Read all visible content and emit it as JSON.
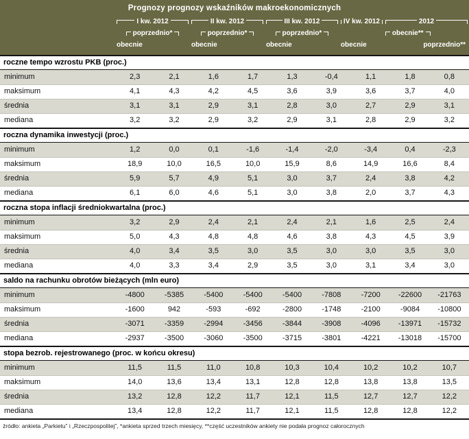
{
  "title": "Prognozy prognozy wskaźników makroekonomicznych",
  "colors": {
    "header_bg": "#686844",
    "row_alt": "#d9d9d0"
  },
  "header": {
    "groups": [
      {
        "label": "I kw. 2012",
        "top": "poprzednio*",
        "bottom": "obecnie"
      },
      {
        "label": "II kw. 2012",
        "top": "poprzednio*",
        "bottom": "obecnie"
      },
      {
        "label": "III kw. 2012",
        "top": "poprzednio*",
        "bottom": "obecnie"
      },
      {
        "label": "IV kw. 2012",
        "top": "",
        "bottom": "obecnie"
      },
      {
        "label": "2012",
        "top": "obecnie**",
        "bottom": "poprzednio**"
      }
    ]
  },
  "chart_data": {
    "type": "table",
    "title": "Prognozy prognozy wskaźników makroekonomicznych",
    "columns": [
      "I kw. 2012 obecnie",
      "I kw. 2012 poprzednio*",
      "II kw. 2012 obecnie",
      "II kw. 2012 poprzednio*",
      "III kw. 2012 obecnie",
      "III kw. 2012 poprzednio*",
      "IV kw. 2012 obecnie",
      "2012 obecnie**",
      "2012 poprzednio**"
    ],
    "sections": [
      {
        "title": "roczne tempo wzrostu PKB (proc.)",
        "rows": [
          {
            "label": "minimum",
            "values": [
              "2,3",
              "2,1",
              "1,6",
              "1,7",
              "1,3",
              "-0,4",
              "1,1",
              "1,8",
              "0,8"
            ]
          },
          {
            "label": "maksimum",
            "values": [
              "4,1",
              "4,3",
              "4,2",
              "4,5",
              "3,6",
              "3,9",
              "3,6",
              "3,7",
              "4,0"
            ]
          },
          {
            "label": "średnia",
            "values": [
              "3,1",
              "3,1",
              "2,9",
              "3,1",
              "2,8",
              "3,0",
              "2,7",
              "2,9",
              "3,1"
            ]
          },
          {
            "label": "mediana",
            "values": [
              "3,2",
              "3,2",
              "2,9",
              "3,2",
              "2,9",
              "3,1",
              "2,8",
              "2,9",
              "3,2"
            ]
          }
        ]
      },
      {
        "title": "roczna dynamika inwestycji (proc.)",
        "rows": [
          {
            "label": "minimum",
            "values": [
              "1,2",
              "0,0",
              "0,1",
              "-1,6",
              "-1,4",
              "-2,0",
              "-3,4",
              "0,4",
              "-2,3"
            ]
          },
          {
            "label": "maksimum",
            "values": [
              "18,9",
              "10,0",
              "16,5",
              "10,0",
              "15,9",
              "8,6",
              "14,9",
              "16,6",
              "8,4"
            ]
          },
          {
            "label": "średnia",
            "values": [
              "5,9",
              "5,7",
              "4,9",
              "5,1",
              "3,0",
              "3,7",
              "2,4",
              "3,8",
              "4,2"
            ]
          },
          {
            "label": "mediana",
            "values": [
              "6,1",
              "6,0",
              "4,6",
              "5,1",
              "3,0",
              "3,8",
              "2,0",
              "3,7",
              "4,3"
            ]
          }
        ]
      },
      {
        "title": "roczna stopa inflacji średniokwartalna (proc.)",
        "rows": [
          {
            "label": "minimum",
            "values": [
              "3,2",
              "2,9",
              "2,4",
              "2,1",
              "2,4",
              "2,1",
              "1,6",
              "2,5",
              "2,4"
            ]
          },
          {
            "label": "maksimum",
            "values": [
              "5,0",
              "4,3",
              "4,8",
              "4,8",
              "4,6",
              "3,8",
              "4,3",
              "4,5",
              "3,9"
            ]
          },
          {
            "label": "średnia",
            "values": [
              "4,0",
              "3,4",
              "3,5",
              "3,0",
              "3,5",
              "3,0",
              "3,0",
              "3,5",
              "3,0"
            ]
          },
          {
            "label": "mediana",
            "values": [
              "4,0",
              "3,3",
              "3,4",
              "2,9",
              "3,5",
              "3,0",
              "3,1",
              "3,4",
              "3,0"
            ]
          }
        ]
      },
      {
        "title": "saldo na rachunku obrotów bieżących (mln euro)",
        "rows": [
          {
            "label": "minimum",
            "values": [
              "-4800",
              "-5385",
              "-5400",
              "-5400",
              "-5400",
              "-7808",
              "-7200",
              "-22600",
              "-21763"
            ]
          },
          {
            "label": "maksimum",
            "values": [
              "-1600",
              "942",
              "-593",
              "-692",
              "-2800",
              "-1748",
              "-2100",
              "-9084",
              "-10800"
            ]
          },
          {
            "label": "średnia",
            "values": [
              "-3071",
              "-3359",
              "-2994",
              "-3456",
              "-3844",
              "-3908",
              "-4096",
              "-13971",
              "-15732"
            ]
          },
          {
            "label": "mediana",
            "values": [
              "-2937",
              "-3500",
              "-3060",
              "-3500",
              "-3715",
              "-3801",
              "-4221",
              "-13018",
              "-15700"
            ]
          }
        ]
      },
      {
        "title": "stopa bezrob. rejestrowanego (proc. w końcu okresu)",
        "rows": [
          {
            "label": "minimum",
            "values": [
              "11,5",
              "11,5",
              "11,0",
              "10,8",
              "10,3",
              "10,4",
              "10,2",
              "10,2",
              "10,7"
            ]
          },
          {
            "label": "maksimum",
            "values": [
              "14,0",
              "13,6",
              "13,4",
              "13,1",
              "12,8",
              "12,8",
              "13,8",
              "13,8",
              "13,5"
            ]
          },
          {
            "label": "średnia",
            "values": [
              "13,2",
              "12,8",
              "12,2",
              "11,7",
              "12,1",
              "11,5",
              "12,7",
              "12,7",
              "12,2"
            ]
          },
          {
            "label": "mediana",
            "values": [
              "13,4",
              "12,8",
              "12,2",
              "11,7",
              "12,1",
              "11,5",
              "12,8",
              "12,8",
              "12,2"
            ]
          }
        ]
      }
    ]
  },
  "footnote": "źródło: ankieta „Parkietu” i „Rzeczpospolitej”, *ankieta sprzed trzech miesięcy, **część uczestników ankiety nie podała prognoz całorocznych"
}
